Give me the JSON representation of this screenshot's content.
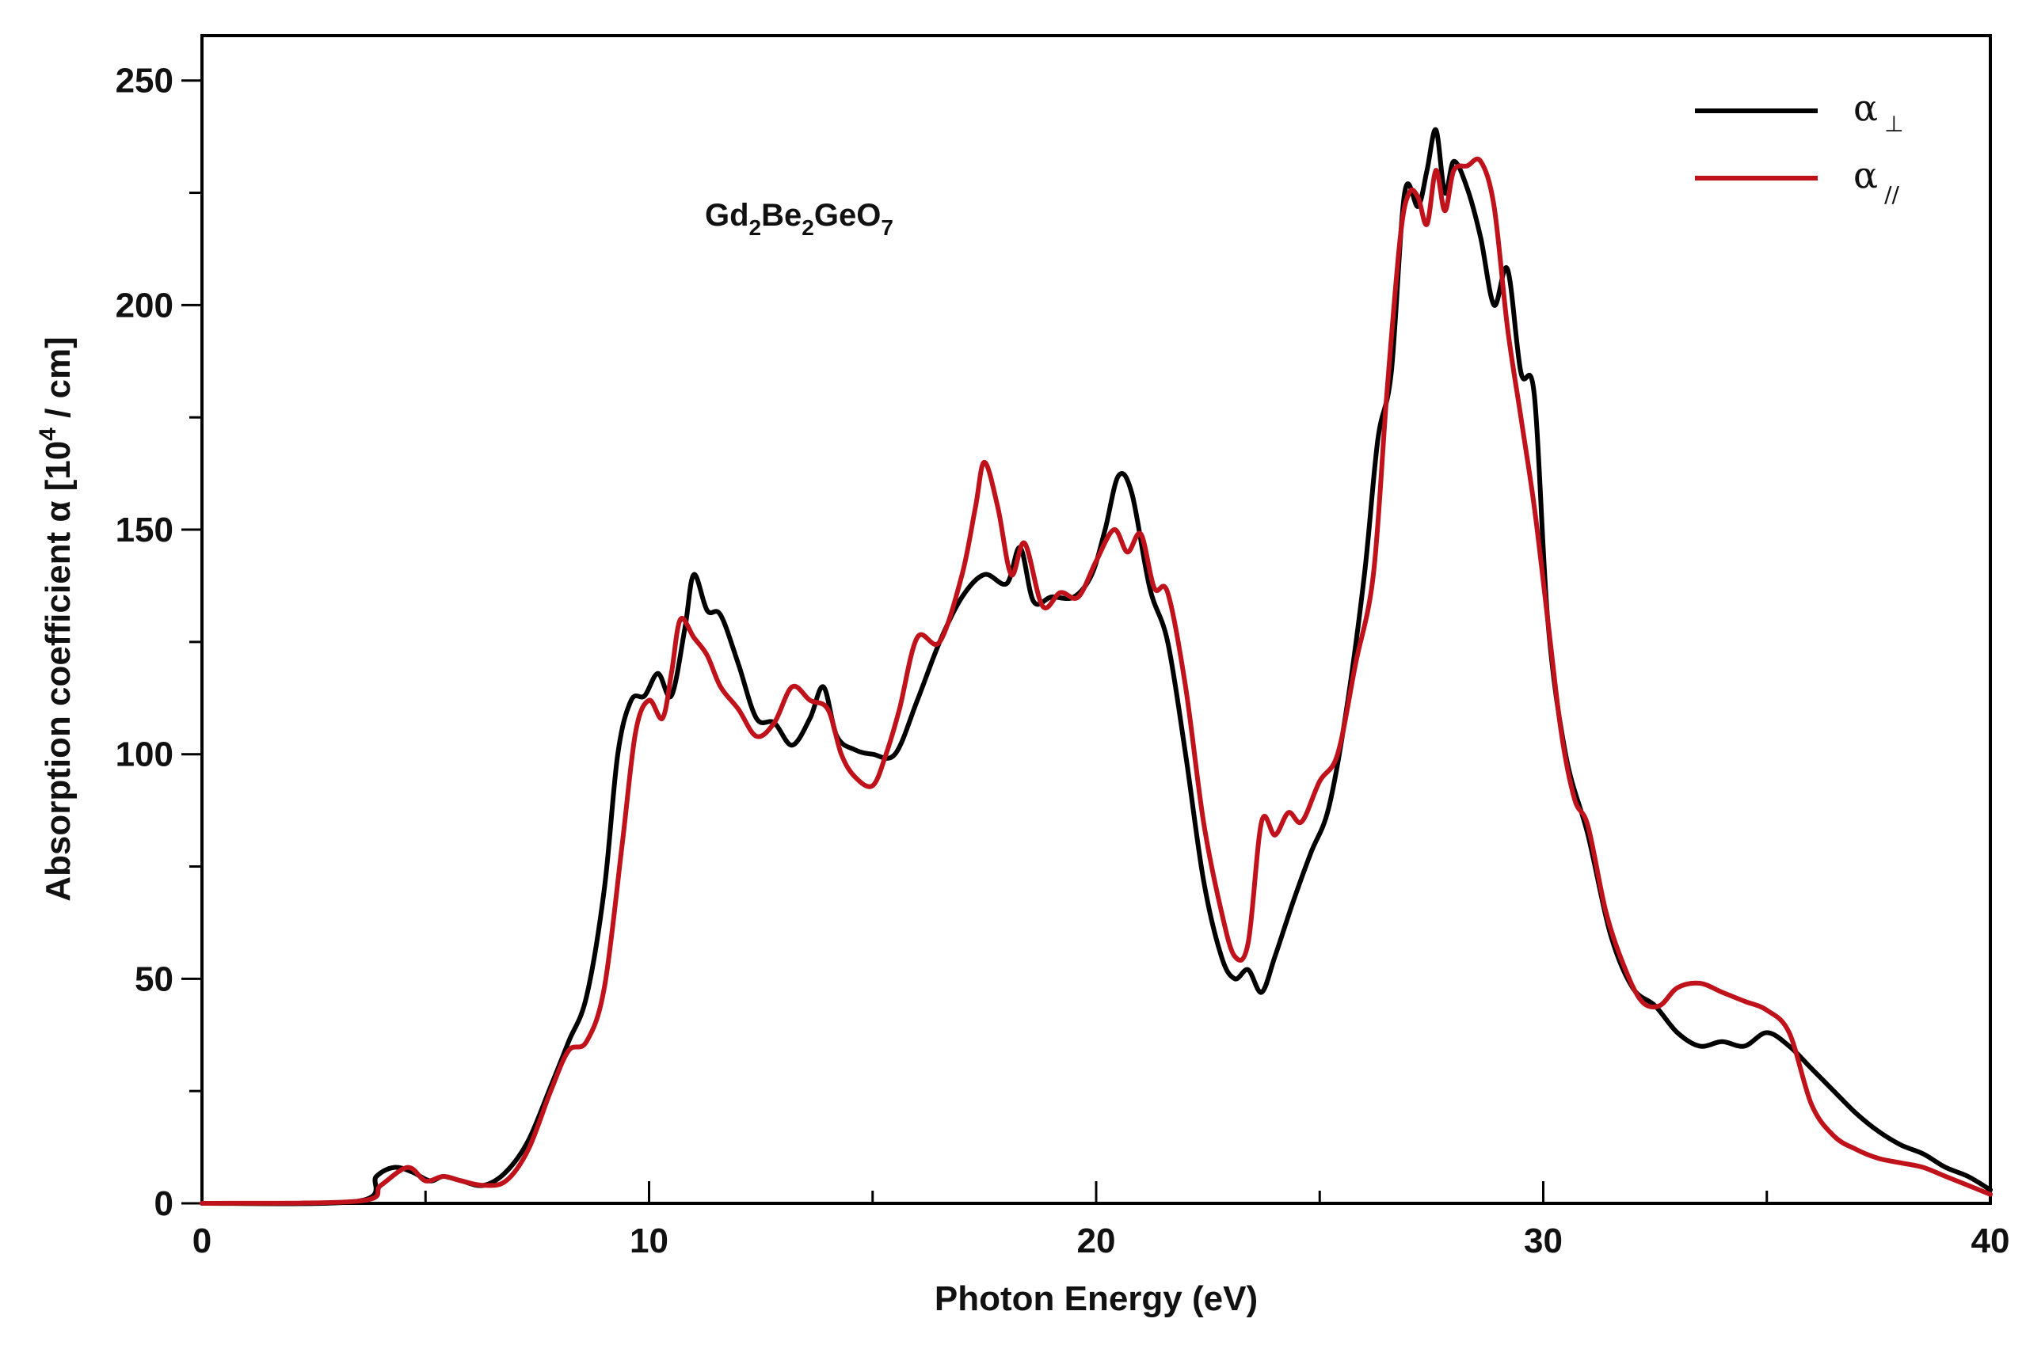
{
  "chart_data": {
    "type": "line",
    "title": "",
    "xlabel": "Photon Energy (eV)",
    "ylabel_main": "Absorption coefficient  α  [10",
    "ylabel_exp": "4",
    "ylabel_unit": " / cm]",
    "xlim": [
      0,
      40
    ],
    "ylim": [
      0,
      260
    ],
    "x_ticks": [
      0,
      10,
      20,
      30,
      40
    ],
    "x_tick_labels": [
      "0",
      "10",
      "20",
      "30",
      "40"
    ],
    "x_minor_ticks": [
      5,
      15,
      25,
      35
    ],
    "y_ticks": [
      0,
      50,
      100,
      150,
      200,
      250
    ],
    "y_tick_labels": [
      "0",
      "50",
      "100",
      "150",
      "200",
      "250"
    ],
    "y_minor_ticks": [
      25,
      75,
      125,
      175,
      225
    ],
    "grid": false,
    "legend_position": "top-right",
    "annotation": {
      "parts": [
        {
          "text": "Gd",
          "sub": false
        },
        {
          "text": "2",
          "sub": true
        },
        {
          "text": "Be",
          "sub": false
        },
        {
          "text": "2",
          "sub": true
        },
        {
          "text": "GeO",
          "sub": false
        },
        {
          "text": "7",
          "sub": true
        }
      ]
    },
    "series": [
      {
        "name": "α",
        "name_sub": "⊥",
        "color": "#000000",
        "x": [
          0,
          3.5,
          3.9,
          4.3,
          4.7,
          5.1,
          5.4,
          5.8,
          6.3,
          6.8,
          7.3,
          7.8,
          8.2,
          8.6,
          9.0,
          9.3,
          9.6,
          9.9,
          10.2,
          10.5,
          10.8,
          11.0,
          11.3,
          11.6,
          12.0,
          12.4,
          12.8,
          13.2,
          13.6,
          13.9,
          14.2,
          14.6,
          15.0,
          15.5,
          16.0,
          16.5,
          17.0,
          17.5,
          18.0,
          18.3,
          18.6,
          19.0,
          19.5,
          19.9,
          20.2,
          20.5,
          20.8,
          21.2,
          21.6,
          22.0,
          22.4,
          22.8,
          23.1,
          23.4,
          23.7,
          24.0,
          24.4,
          24.8,
          25.2,
          25.6,
          26.0,
          26.3,
          26.6,
          26.9,
          27.2,
          27.4,
          27.6,
          27.8,
          28.0,
          28.3,
          28.6,
          28.9,
          29.2,
          29.5,
          29.8,
          30.1,
          30.5,
          31.0,
          31.5,
          32.0,
          32.5,
          33.0,
          33.5,
          34.0,
          34.5,
          35.0,
          35.5,
          36.0,
          36.5,
          37.0,
          37.5,
          38.0,
          38.5,
          39.0,
          39.5,
          40.0
        ],
        "y": [
          0,
          0.5,
          6,
          8,
          7,
          5,
          6,
          5,
          4,
          7,
          14,
          26,
          36,
          46,
          70,
          100,
          112,
          113,
          118,
          113,
          128,
          140,
          132,
          131,
          120,
          108,
          107,
          102,
          108,
          115,
          104,
          101,
          100,
          100,
          112,
          125,
          135,
          140,
          138,
          146,
          134,
          135,
          135,
          140,
          150,
          162,
          158,
          137,
          125,
          100,
          72,
          55,
          50,
          52,
          47,
          55,
          67,
          78,
          88,
          110,
          140,
          170,
          185,
          225,
          222,
          230,
          239,
          225,
          232,
          226,
          215,
          200,
          208,
          185,
          180,
          130,
          100,
          82,
          60,
          48,
          44,
          38,
          35,
          36,
          35,
          38,
          35,
          30,
          25,
          20,
          16,
          13,
          11,
          8,
          6,
          3
        ]
      },
      {
        "name": "α",
        "name_sub": "//",
        "color": "#c0121b",
        "x": [
          0,
          3.5,
          4.0,
          4.6,
          5.0,
          5.4,
          5.8,
          6.3,
          6.8,
          7.3,
          7.8,
          8.2,
          8.6,
          9.0,
          9.4,
          9.7,
          10.0,
          10.3,
          10.5,
          10.7,
          11.0,
          11.3,
          11.6,
          12.0,
          12.4,
          12.8,
          13.2,
          13.6,
          14.0,
          14.3,
          14.6,
          15.0,
          15.3,
          15.6,
          16.0,
          16.5,
          17.0,
          17.3,
          17.5,
          17.8,
          18.1,
          18.4,
          18.8,
          19.2,
          19.6,
          20.0,
          20.4,
          20.7,
          21.0,
          21.3,
          21.6,
          22.0,
          22.4,
          22.8,
          23.1,
          23.4,
          23.7,
          24.0,
          24.3,
          24.6,
          25.0,
          25.4,
          25.8,
          26.2,
          26.5,
          26.8,
          27.0,
          27.2,
          27.4,
          27.6,
          27.8,
          28.0,
          28.3,
          28.6,
          28.9,
          29.2,
          29.5,
          29.8,
          30.1,
          30.4,
          30.7,
          31.0,
          31.4,
          31.8,
          32.2,
          32.6,
          33.0,
          33.5,
          34.0,
          34.5,
          35.0,
          35.5,
          36.0,
          36.5,
          37.0,
          37.5,
          38.0,
          38.5,
          39.0,
          39.5,
          40.0
        ],
        "y": [
          0,
          0.5,
          4,
          8,
          5,
          6,
          5,
          4,
          5,
          12,
          25,
          34,
          36,
          48,
          80,
          105,
          112,
          108,
          118,
          130,
          126,
          122,
          115,
          110,
          104,
          107,
          115,
          112,
          110,
          100,
          95,
          93,
          100,
          110,
          126,
          125,
          140,
          155,
          165,
          155,
          140,
          147,
          133,
          136,
          135,
          143,
          150,
          145,
          149,
          137,
          136,
          115,
          85,
          65,
          55,
          58,
          85,
          82,
          87,
          85,
          94,
          100,
          120,
          140,
          180,
          215,
          225,
          224,
          218,
          230,
          221,
          230,
          231,
          232,
          222,
          195,
          175,
          155,
          130,
          105,
          90,
          84,
          65,
          53,
          45,
          44,
          48,
          49,
          47,
          45,
          43,
          38,
          22,
          15,
          12,
          10,
          9,
          8,
          6,
          4,
          2
        ]
      }
    ]
  }
}
